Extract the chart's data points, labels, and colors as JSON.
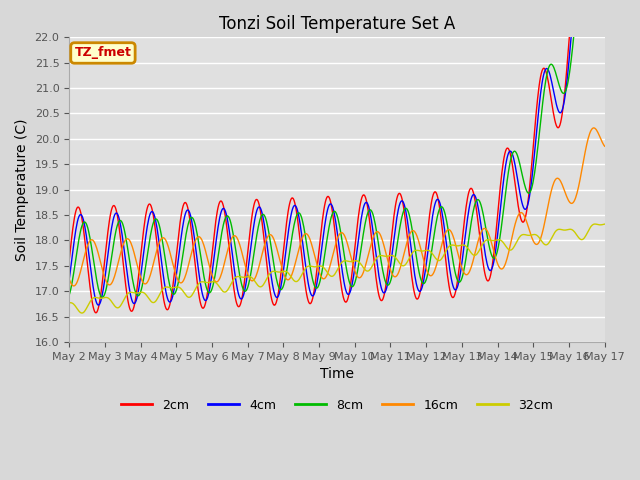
{
  "title": "Tonzi Soil Temperature Set A",
  "xlabel": "Time",
  "ylabel": "Soil Temperature (C)",
  "ylim": [
    16.0,
    22.0
  ],
  "yticks": [
    16.0,
    16.5,
    17.0,
    17.5,
    18.0,
    18.5,
    19.0,
    19.5,
    20.0,
    20.5,
    21.0,
    21.5,
    22.0
  ],
  "colors": {
    "2cm": "#ff0000",
    "4cm": "#0000ff",
    "8cm": "#00bb00",
    "16cm": "#ff8800",
    "32cm": "#cccc00"
  },
  "legend_label": "TZ_fmet",
  "legend_bg": "#ffffcc",
  "legend_border": "#cc8800",
  "fig_facecolor": "#d8d8d8",
  "ax_facecolor": "#e0e0e0",
  "n_points": 720,
  "start_day": 2,
  "end_day": 17
}
